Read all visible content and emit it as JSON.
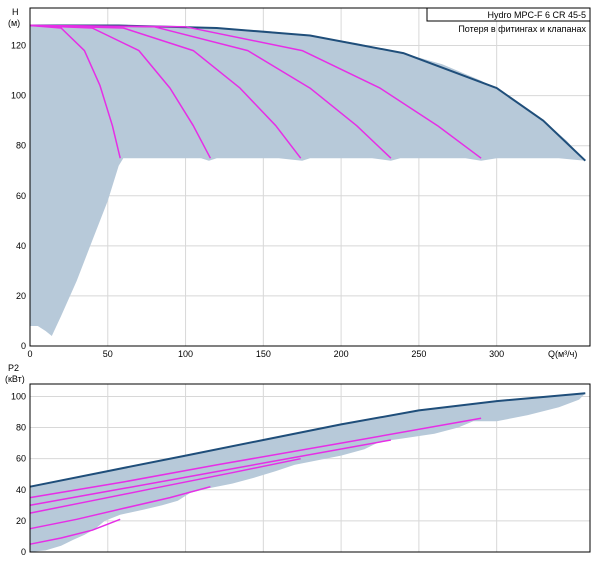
{
  "legend": {
    "line1": "Hydro MPC-F 6 CR 45-5",
    "line2": "Потеря в фитингах и клапанах"
  },
  "colors": {
    "envelope_fill": "#b7c9d9",
    "envelope_edge": "#1f4e7a",
    "stage_curve": "#e62ee6",
    "grid": "#d8d8d8",
    "frame": "#000000"
  },
  "chart_data": [
    {
      "id": "head",
      "type": "line",
      "ylabel": "H",
      "yunit": "(м)",
      "xlabel": "Q(м³/ч)",
      "xlim": [
        0,
        360
      ],
      "ylim": [
        0,
        135
      ],
      "xticks": [
        0,
        50,
        100,
        150,
        200,
        250,
        300
      ],
      "yticks": [
        0,
        20,
        40,
        60,
        80,
        100,
        120
      ],
      "grid": true,
      "legend_position": "top-right",
      "envelope_area": [
        [
          0,
          8
        ],
        [
          5,
          8
        ],
        [
          10,
          6
        ],
        [
          14,
          4
        ],
        [
          20,
          12
        ],
        [
          30,
          26
        ],
        [
          40,
          42
        ],
        [
          50,
          58
        ],
        [
          57,
          72
        ],
        [
          60,
          75
        ],
        [
          70,
          75
        ],
        [
          90,
          75
        ],
        [
          110,
          75
        ],
        [
          115,
          74
        ],
        [
          120,
          75
        ],
        [
          140,
          75
        ],
        [
          160,
          75
        ],
        [
          175,
          74
        ],
        [
          180,
          75
        ],
        [
          200,
          75
        ],
        [
          220,
          75
        ],
        [
          232,
          74
        ],
        [
          238,
          75
        ],
        [
          260,
          75
        ],
        [
          280,
          75
        ],
        [
          290,
          74
        ],
        [
          300,
          75
        ],
        [
          320,
          75
        ],
        [
          340,
          75
        ],
        [
          357,
          74
        ],
        [
          357,
          74
        ],
        [
          345,
          82
        ],
        [
          330,
          90
        ],
        [
          310,
          99
        ],
        [
          290,
          106
        ],
        [
          265,
          112.5
        ],
        [
          240,
          117
        ],
        [
          210,
          121
        ],
        [
          180,
          124
        ],
        [
          150,
          126
        ],
        [
          120,
          127
        ],
        [
          100,
          127.5
        ],
        [
          60,
          128
        ],
        [
          0,
          128
        ]
      ],
      "series": [
        {
          "values": [
            [
              0,
              128
            ],
            [
              57,
              128
            ],
            [
              120,
              127
            ],
            [
              180,
              124
            ],
            [
              240,
              117
            ],
            [
              300,
              103
            ],
            [
              330,
              90
            ],
            [
              357,
              74
            ]
          ]
        },
        {
          "values": [
            [
              0,
              128
            ],
            [
              20,
              127
            ],
            [
              35,
              118
            ],
            [
              45,
              104
            ],
            [
              53,
              88
            ],
            [
              58,
              75
            ]
          ]
        },
        {
          "values": [
            [
              0,
              128
            ],
            [
              40,
              127
            ],
            [
              70,
              118
            ],
            [
              90,
              103
            ],
            [
              105,
              88
            ],
            [
              116,
              75
            ]
          ]
        },
        {
          "values": [
            [
              0,
              128
            ],
            [
              60,
              127
            ],
            [
              105,
              118
            ],
            [
              135,
              103
            ],
            [
              158,
              88
            ],
            [
              174,
              75
            ]
          ]
        },
        {
          "values": [
            [
              0,
              128
            ],
            [
              80,
              127.5
            ],
            [
              140,
              118
            ],
            [
              180,
              103
            ],
            [
              210,
              88
            ],
            [
              232,
              75
            ]
          ]
        },
        {
          "values": [
            [
              0,
              128
            ],
            [
              100,
              127.5
            ],
            [
              175,
              118
            ],
            [
              225,
              103
            ],
            [
              262,
              88
            ],
            [
              290,
              75
            ]
          ]
        }
      ]
    },
    {
      "id": "power",
      "type": "line",
      "ylabel": "P2",
      "yunit": "(кВт)",
      "xlim": [
        0,
        360
      ],
      "ylim": [
        0,
        108
      ],
      "yticks": [
        0,
        20,
        40,
        60,
        80,
        100
      ],
      "grid": true,
      "envelope_area": [
        [
          0,
          42
        ],
        [
          50,
          52
        ],
        [
          100,
          62
        ],
        [
          150,
          72
        ],
        [
          200,
          82
        ],
        [
          250,
          91
        ],
        [
          300,
          97
        ],
        [
          357,
          102
        ],
        [
          353,
          98
        ],
        [
          340,
          93
        ],
        [
          320,
          88
        ],
        [
          300,
          84
        ],
        [
          285,
          84
        ],
        [
          275,
          80
        ],
        [
          260,
          76
        ],
        [
          240,
          73
        ],
        [
          225,
          71
        ],
        [
          215,
          66
        ],
        [
          200,
          62
        ],
        [
          185,
          59
        ],
        [
          170,
          56
        ],
        [
          158,
          52
        ],
        [
          145,
          48
        ],
        [
          130,
          44
        ],
        [
          115,
          41
        ],
        [
          103,
          38
        ],
        [
          95,
          33
        ],
        [
          85,
          30
        ],
        [
          72,
          27
        ],
        [
          58,
          24
        ],
        [
          48,
          20
        ],
        [
          42,
          15
        ],
        [
          35,
          11
        ],
        [
          28,
          8
        ],
        [
          20,
          4
        ],
        [
          10,
          1
        ],
        [
          0,
          0
        ]
      ],
      "series": [
        {
          "values": [
            [
              0,
              42
            ],
            [
              50,
              52
            ],
            [
              100,
              62
            ],
            [
              150,
              72
            ],
            [
              200,
              82
            ],
            [
              250,
              91
            ],
            [
              300,
              97
            ],
            [
              357,
              102
            ]
          ]
        },
        {
          "values": [
            [
              0,
              5
            ],
            [
              20,
              9
            ],
            [
              40,
              14
            ],
            [
              58,
              21
            ]
          ]
        },
        {
          "values": [
            [
              0,
              15
            ],
            [
              30,
              21
            ],
            [
              60,
              28
            ],
            [
              90,
              35
            ],
            [
              116,
              42
            ]
          ]
        },
        {
          "values": [
            [
              0,
              25
            ],
            [
              40,
              33
            ],
            [
              80,
              41
            ],
            [
              130,
              51
            ],
            [
              174,
              60
            ]
          ]
        },
        {
          "values": [
            [
              0,
              30
            ],
            [
              50,
              39
            ],
            [
              100,
              48
            ],
            [
              160,
              59
            ],
            [
              232,
              72
            ]
          ]
        },
        {
          "values": [
            [
              0,
              35
            ],
            [
              60,
              45
            ],
            [
              120,
              56
            ],
            [
              200,
              70
            ],
            [
              290,
              86
            ]
          ]
        }
      ]
    }
  ]
}
